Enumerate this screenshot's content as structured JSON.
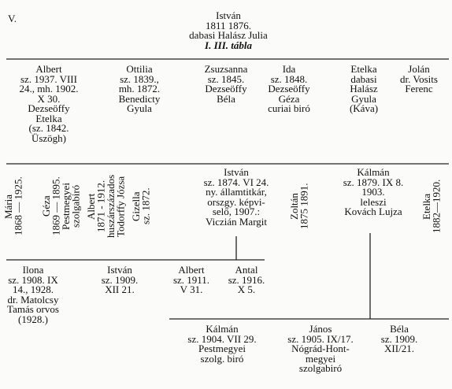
{
  "heading": "V.",
  "root": {
    "lines": [
      "István",
      "1811 1876.",
      "dabasi Halász Julia",
      "I. III. tábla"
    ]
  },
  "generations": [
    {
      "people": [
        {
          "lines": [
            "Albert",
            "sz. 1937. VIII",
            "24., mh. 1902.",
            "X 30.",
            "Dezseöffy",
            "Etelka",
            "(sz. 1842.",
            "Üszögh)"
          ]
        },
        {
          "lines": [
            "Ottilia",
            "sz. 1839.,",
            "mh. 1872.",
            "Benedicty",
            "Gyula"
          ]
        },
        {
          "lines": [
            "Zsuzsanna",
            "sz. 1845.",
            "Dezseöffy",
            "Béla"
          ]
        },
        {
          "lines": [
            "Ida",
            "sz. 1848.",
            "Dezseöffy",
            "Géza",
            "curiai biró"
          ]
        },
        {
          "lines": [
            "Etelka",
            "dabasi",
            "Halász",
            "Gyula",
            "(Káva)"
          ]
        },
        {
          "lines": [
            "Jolán",
            "dr. Vosits",
            "Ferenc"
          ]
        }
      ]
    },
    {
      "people": [
        {
          "lines": [
            "Mária",
            "1868 — 1925."
          ]
        },
        {
          "lines": [
            "Géza",
            "1869 — 1895.",
            "Pestmegyei",
            "szolgabiró"
          ]
        },
        {
          "lines": [
            "Albert",
            "1871 - 1912.",
            "huszárszázados",
            "Todorffy Józsa"
          ]
        },
        {
          "lines": [
            "Gizella",
            "sz. 1872."
          ]
        },
        {
          "lines": [
            "István",
            "sz. 1874. VI 24.",
            "ny. államtitkár,",
            "orszgy. képvi-",
            "selő, 1907.:",
            "Viczián Margit"
          ]
        },
        {
          "lines": [
            "Zoltán",
            "1875 1891."
          ]
        },
        {
          "lines": [
            "Kálmán",
            "sz. 1879. IX 8.",
            "1903.",
            "leleszi",
            "Kovách Lujza"
          ]
        },
        {
          "lines": [
            "Etelka",
            "1882—1920."
          ]
        }
      ]
    },
    {
      "people": [
        {
          "lines": [
            "Ilona",
            "sz. 1908. IX",
            "14., 1928.",
            "dr. Matolcsy",
            "Tamás orvos",
            "(1928.)"
          ]
        },
        {
          "lines": [
            "István",
            "sz. 1909.",
            "XII 21."
          ]
        },
        {
          "lines": [
            "Albert",
            "sz. 1911.",
            "V 31."
          ]
        },
        {
          "lines": [
            "Antal",
            "sz. 1916.",
            "X 5."
          ]
        }
      ]
    },
    {
      "people": [
        {
          "lines": [
            "Kálmán",
            "sz. 1904. VII 29.",
            "Pestmegyei",
            "szolg. biró"
          ]
        },
        {
          "lines": [
            "János",
            "sz. 1905. IX/17.",
            "Nógrád-Hont-",
            "megyei",
            "szolgabiró"
          ]
        },
        {
          "lines": [
            "Béla",
            "sz. 1909.",
            "XII/21."
          ]
        }
      ]
    }
  ]
}
